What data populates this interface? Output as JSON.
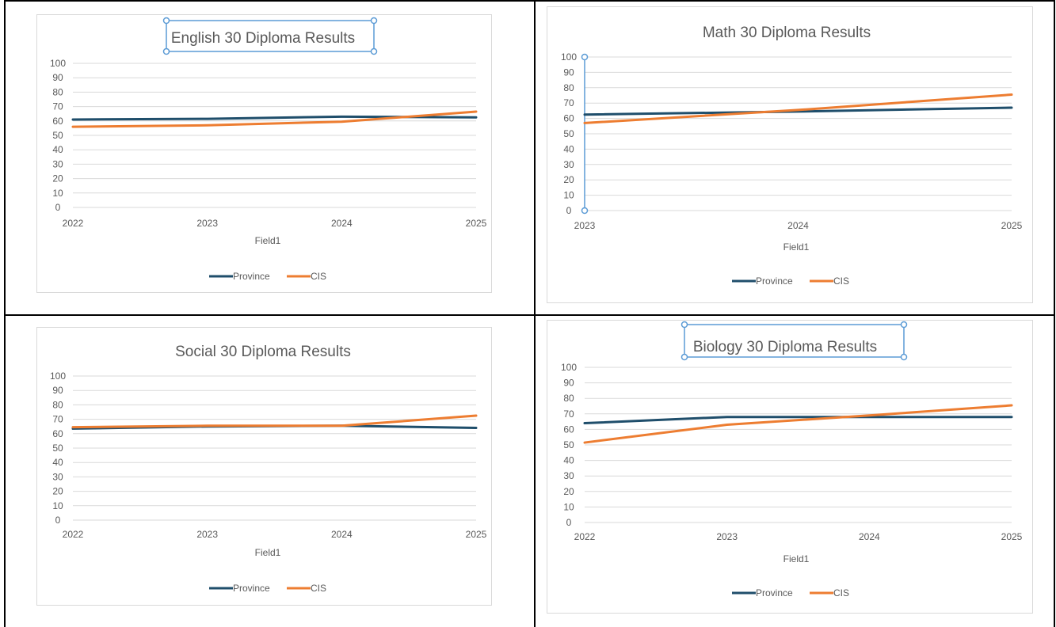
{
  "colors": {
    "province": "#1f4e6b",
    "cis": "#ed7d31",
    "grid": "#d9d9d9",
    "text": "#595959",
    "selection": "#5b9bd5"
  },
  "chart_data": [
    {
      "type": "line",
      "title": "English 30 Diploma Results",
      "title_selected": true,
      "xlabel": "Field1",
      "categories": [
        "2022",
        "2023",
        "2024",
        "2025"
      ],
      "y_ticks": [
        "0",
        "10",
        "20",
        "30",
        "40",
        "50",
        "60",
        "70",
        "80",
        "90",
        "100"
      ],
      "ylim": [
        0,
        100
      ],
      "axis_selected": false,
      "legend_position": "bottom",
      "series": [
        {
          "name": "Province",
          "values": [
            61,
            61.5,
            63,
            62.5
          ]
        },
        {
          "name": "CIS",
          "values": [
            56,
            57,
            59.5,
            66.5
          ]
        }
      ]
    },
    {
      "type": "line",
      "title": "Math 30 Diploma Results",
      "title_selected": false,
      "xlabel": "Field1",
      "categories": [
        "2023",
        "2024",
        "2025"
      ],
      "y_ticks": [
        "0",
        "10",
        "20",
        "30",
        "40",
        "50",
        "60",
        "70",
        "80",
        "90",
        "100"
      ],
      "ylim": [
        0,
        100
      ],
      "axis_selected": true,
      "legend_position": "bottom",
      "series": [
        {
          "name": "Province",
          "values": [
            62.5,
            64.5,
            67
          ]
        },
        {
          "name": "CIS",
          "values": [
            57,
            65.5,
            75.5
          ]
        }
      ]
    },
    {
      "type": "line",
      "title": "Social 30 Diploma Results",
      "title_selected": false,
      "xlabel": "Field1",
      "categories": [
        "2022",
        "2023",
        "2024",
        "2025"
      ],
      "y_ticks": [
        "0",
        "10",
        "20",
        "30",
        "40",
        "50",
        "60",
        "70",
        "80",
        "90",
        "100"
      ],
      "ylim": [
        0,
        100
      ],
      "axis_selected": false,
      "legend_position": "bottom",
      "series": [
        {
          "name": "Province",
          "values": [
            63.5,
            65,
            65.5,
            64
          ]
        },
        {
          "name": "CIS",
          "values": [
            64.5,
            65.5,
            65.5,
            72.5
          ]
        }
      ]
    },
    {
      "type": "line",
      "title": "Biology 30 Diploma Results",
      "title_selected": true,
      "xlabel": "Field1",
      "categories": [
        "2022",
        "2023",
        "2024",
        "2025"
      ],
      "y_ticks": [
        "0",
        "10",
        "20",
        "30",
        "40",
        "50",
        "60",
        "70",
        "80",
        "90",
        "100"
      ],
      "ylim": [
        0,
        100
      ],
      "axis_selected": false,
      "legend_position": "bottom",
      "series": [
        {
          "name": "Province",
          "values": [
            64,
            68,
            68,
            68
          ]
        },
        {
          "name": "CIS",
          "values": [
            51.5,
            63,
            69,
            75.5
          ]
        }
      ]
    }
  ]
}
